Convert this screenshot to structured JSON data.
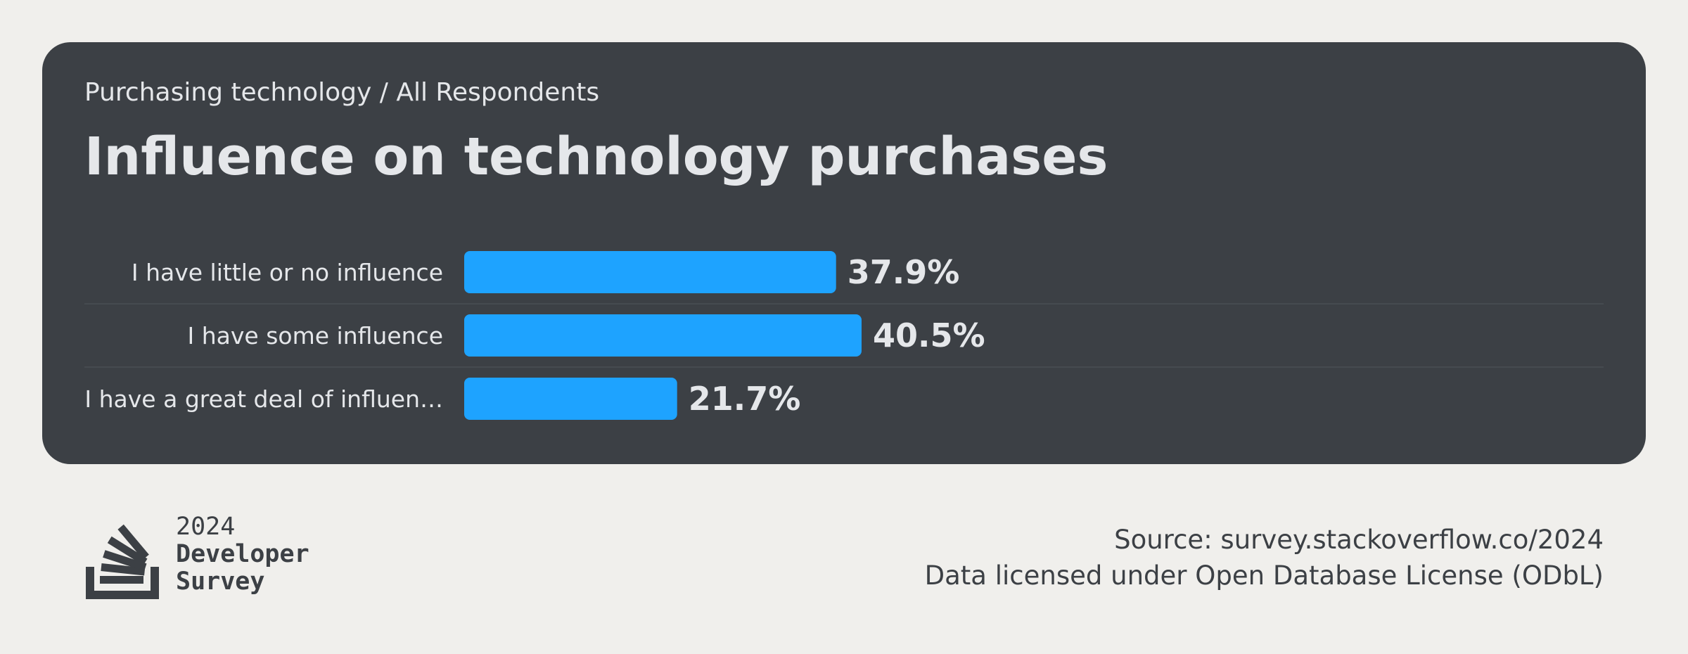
{
  "header": {
    "breadcrumb": "Purchasing technology / All Respondents",
    "title": "Influence on technology purchases"
  },
  "chart_data": {
    "type": "bar",
    "orientation": "horizontal",
    "title": "Influence on technology purchases",
    "xlabel": "",
    "ylabel": "",
    "unit": "%",
    "categories": [
      "I have little or no influence",
      "I have some influence",
      "I have a great deal of influen…"
    ],
    "values": [
      37.9,
      40.5,
      21.7
    ],
    "value_labels": [
      "37.9%",
      "40.5%",
      "21.7%"
    ],
    "xlim": [
      0,
      100
    ],
    "grid": false,
    "bar_color": "#1ea3ff"
  },
  "footer": {
    "logo_icon": "stack-overflow-logo-icon",
    "brand_year": "2024",
    "brand_line1": "Developer",
    "brand_line2": "Survey",
    "source": "Source: survey.stackoverflow.co/2024",
    "license": "Data licensed under Open Database License (ODbL)"
  },
  "colors": {
    "page_background": "#f0efec",
    "card_background": "#3c4045",
    "text_light": "#e5e7ea",
    "text_dark": "#3c4045",
    "bar": "#1ea3ff",
    "separator": "#4a4f55"
  }
}
